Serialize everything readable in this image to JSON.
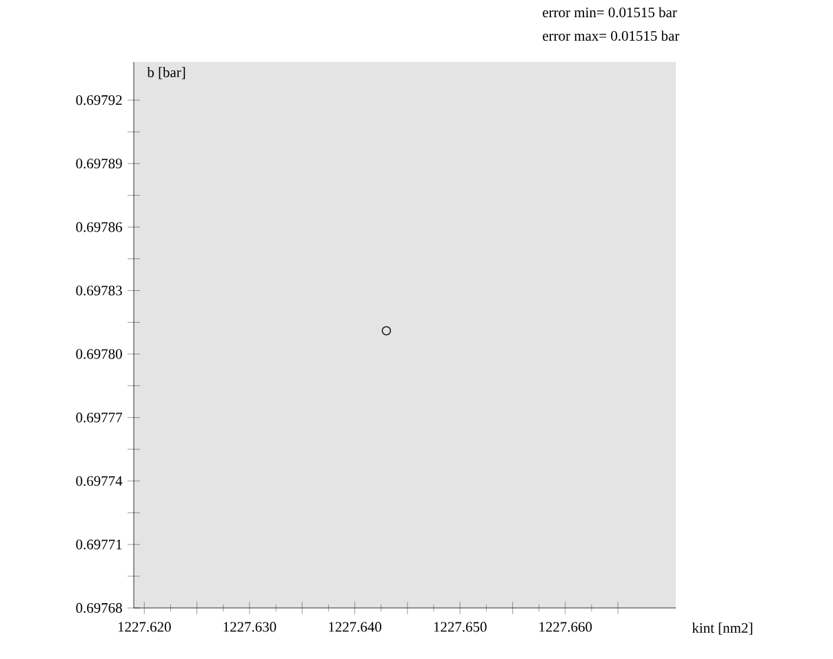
{
  "chart_data": {
    "type": "scatter",
    "xlabel": "kint [nm2]",
    "ylabel": "b [bar]",
    "annotations": [
      "error min= 0.01515 bar",
      "error max= 0.01515 bar"
    ],
    "x": [
      1227.643
    ],
    "values": [
      0.697811
    ],
    "color": "#000000",
    "marker": "circle",
    "xlim": [
      1227.619,
      1227.6705
    ],
    "ylim": [
      0.69768,
      0.697938
    ],
    "xticks": [
      {
        "value": 1227.62,
        "label": "1227.620"
      },
      {
        "value": 1227.625,
        "label": null
      },
      {
        "value": 1227.63,
        "label": "1227.630"
      },
      {
        "value": 1227.635,
        "label": null
      },
      {
        "value": 1227.64,
        "label": "1227.640"
      },
      {
        "value": 1227.645,
        "label": null
      },
      {
        "value": 1227.65,
        "label": "1227.650"
      },
      {
        "value": 1227.655,
        "label": null
      },
      {
        "value": 1227.66,
        "label": "1227.660"
      },
      {
        "value": 1227.665,
        "label": null
      }
    ],
    "yticks": [
      {
        "value": 0.69768,
        "label": "0.69768"
      },
      {
        "value": 0.697695,
        "label": null
      },
      {
        "value": 0.69771,
        "label": "0.69771"
      },
      {
        "value": 0.697725,
        "label": null
      },
      {
        "value": 0.69774,
        "label": "0.69774"
      },
      {
        "value": 0.697755,
        "label": null
      },
      {
        "value": 0.69777,
        "label": "0.69777"
      },
      {
        "value": 0.697785,
        "label": null
      },
      {
        "value": 0.6978,
        "label": "0.69780"
      },
      {
        "value": 0.697815,
        "label": null
      },
      {
        "value": 0.69783,
        "label": "0.69783"
      },
      {
        "value": 0.697845,
        "label": null
      },
      {
        "value": 0.69786,
        "label": "0.69786"
      },
      {
        "value": 0.697875,
        "label": null
      },
      {
        "value": 0.69789,
        "label": "0.69789"
      },
      {
        "value": 0.697905,
        "label": null
      },
      {
        "value": 0.69792,
        "label": "0.69792"
      }
    ]
  }
}
